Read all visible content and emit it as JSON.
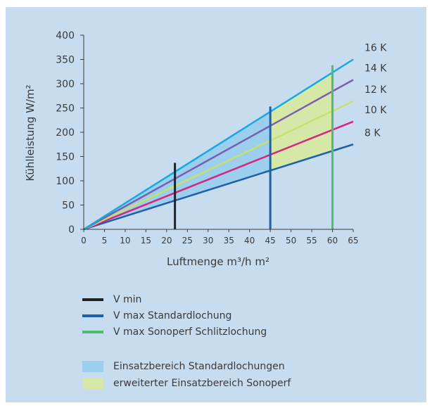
{
  "chart_data": {
    "type": "line",
    "xlabel": "Luftmenge m³/h m²",
    "ylabel": "Kühlleistung W/m²",
    "xlim": [
      0,
      65
    ],
    "ylim": [
      0,
      400
    ],
    "x_ticks": [
      0,
      5,
      10,
      15,
      20,
      25,
      30,
      35,
      40,
      45,
      50,
      55,
      60,
      65
    ],
    "y_ticks": [
      0,
      50,
      100,
      150,
      200,
      250,
      300,
      350,
      400
    ],
    "grid": false,
    "series": [
      {
        "name": "8 K",
        "color": "#1f5fa8",
        "x": [
          0,
          65
        ],
        "y": [
          0,
          175
        ]
      },
      {
        "name": "10 K",
        "color": "#d6247f",
        "x": [
          0,
          65
        ],
        "y": [
          0,
          222
        ]
      },
      {
        "name": "12 K",
        "color": "#c7e06a",
        "x": [
          0,
          65
        ],
        "y": [
          0,
          264
        ]
      },
      {
        "name": "14 K",
        "color": "#7a5fae",
        "x": [
          0,
          65
        ],
        "y": [
          0,
          308
        ]
      },
      {
        "name": "16 K",
        "color": "#16a9e1",
        "x": [
          0,
          65
        ],
        "y": [
          0,
          350
        ]
      }
    ],
    "vertical_lines": [
      {
        "name": "V min",
        "color": "#222222",
        "x": 22,
        "y_top": 137
      },
      {
        "name": "V max Standardlochung",
        "color": "#1f5fa8",
        "x": 45,
        "y_top": 253
      },
      {
        "name": "V max Sonoperf Schlitzlochung",
        "color": "#4dbe6e",
        "x": 60,
        "y_top": 338
      }
    ],
    "areas": [
      {
        "name": "Einsatzbereich Standardlochungen",
        "color": "#9ccfee",
        "x_range": [
          0,
          45
        ],
        "lower": "8 K",
        "upper": "16 K"
      },
      {
        "name": "erweiterter Einsatzbereich Sonoperf",
        "color": "#d6e8a8",
        "x_range": [
          45,
          60
        ],
        "lower": "8 K",
        "upper": "16 K"
      }
    ]
  },
  "legend": {
    "lines": [
      {
        "label": "V min",
        "color": "#222222"
      },
      {
        "label": "V max Standardlochung",
        "color": "#1f5fa8"
      },
      {
        "label": "V max Sonoperf Schlitzlochung",
        "color": "#4dbe6e"
      }
    ],
    "areas": [
      {
        "label": "Einsatzbereich Standardlochungen",
        "color": "#9ccfee"
      },
      {
        "label": "erweiterter Einsatzbereich Sonoperf",
        "color": "#d6e8a8"
      }
    ]
  }
}
